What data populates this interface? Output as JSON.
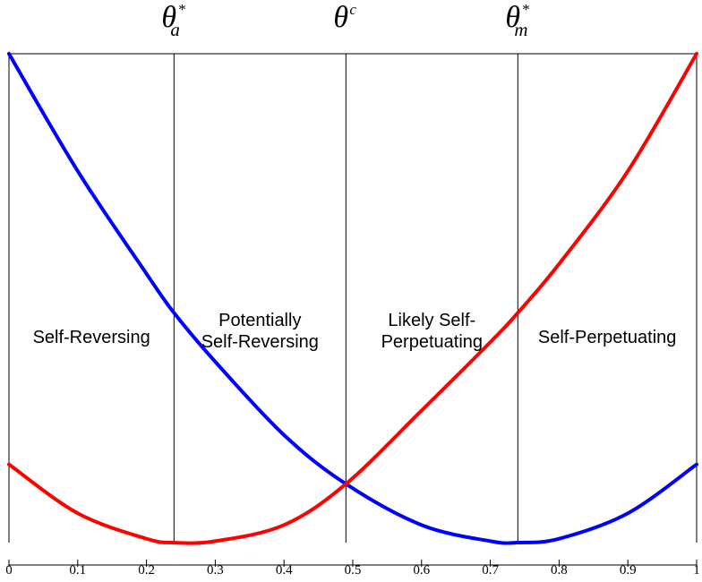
{
  "chart_data": {
    "type": "line",
    "title": "",
    "xlabel": "",
    "ylabel": "",
    "xlim": [
      0,
      1
    ],
    "ylim": [
      0,
      1
    ],
    "grid": false,
    "legend": "none",
    "x_ticks": [
      "0",
      "0.1",
      "0.2",
      "0.3",
      "0.4",
      "0.5",
      "0.6",
      "0.7",
      "0.8",
      "0.9",
      "1"
    ],
    "series": [
      {
        "color": "#0000ff",
        "x": [
          0,
          0.1,
          0.2,
          0.24,
          0.3,
          0.4,
          0.49,
          0.6,
          0.7,
          0.74,
          0.8,
          0.9,
          1
        ],
        "y": [
          1.0,
          0.76,
          0.55,
          0.47,
          0.37,
          0.22,
          0.12,
          0.036,
          0.003,
          0.0,
          0.008,
          0.06,
          0.16
        ]
      },
      {
        "color": "#ff0000",
        "x": [
          0,
          0.1,
          0.2,
          0.24,
          0.3,
          0.4,
          0.49,
          0.6,
          0.7,
          0.74,
          0.8,
          0.9,
          1
        ],
        "y": [
          0.16,
          0.06,
          0.008,
          0.0,
          0.003,
          0.036,
          0.12,
          0.27,
          0.41,
          0.47,
          0.57,
          0.76,
          1.0
        ]
      }
    ],
    "thresholds": [
      {
        "x": 0.24,
        "symbol": "θ",
        "sup": "*",
        "sub": "a"
      },
      {
        "x": 0.49,
        "symbol": "θ",
        "sup": "c",
        "sub": ""
      },
      {
        "x": 0.74,
        "symbol": "θ",
        "sup": "*",
        "sub": "m"
      }
    ],
    "regions": [
      {
        "x": 0.12,
        "lines": [
          "Self-Reversing"
        ]
      },
      {
        "x": 0.365,
        "lines": [
          "Potentially",
          "Self-Reversing"
        ]
      },
      {
        "x": 0.615,
        "lines": [
          "Likely Self-",
          "Perpetuating"
        ]
      },
      {
        "x": 0.87,
        "lines": [
          "Self-Perpetuating"
        ]
      }
    ]
  }
}
